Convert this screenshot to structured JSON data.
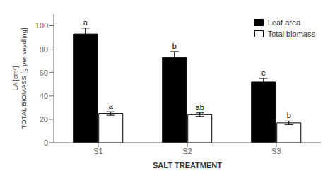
{
  "chart_data": {
    "type": "bar",
    "categories": [
      "S1",
      "S2",
      "S3"
    ],
    "series": [
      {
        "name": "Leaf area",
        "color": "#000000",
        "values": [
          93,
          73,
          52
        ],
        "errors": [
          5,
          5,
          3
        ],
        "letters": [
          "a",
          "b",
          "c"
        ]
      },
      {
        "name": "Total biomass",
        "color": "#ffffff",
        "values": [
          25,
          24,
          17
        ],
        "errors": [
          1.5,
          1.5,
          1.5
        ],
        "letters": [
          "a",
          "ab",
          "b"
        ]
      }
    ],
    "xlabel": "SALT TREATMENT",
    "ylabel": "LA [cm²]\nTOTAL BIOMASS [g per seedling]",
    "ylim": [
      0,
      110
    ],
    "yticks": [
      0,
      20,
      40,
      60,
      80,
      100
    ],
    "grid": false,
    "legend": "upper right"
  }
}
